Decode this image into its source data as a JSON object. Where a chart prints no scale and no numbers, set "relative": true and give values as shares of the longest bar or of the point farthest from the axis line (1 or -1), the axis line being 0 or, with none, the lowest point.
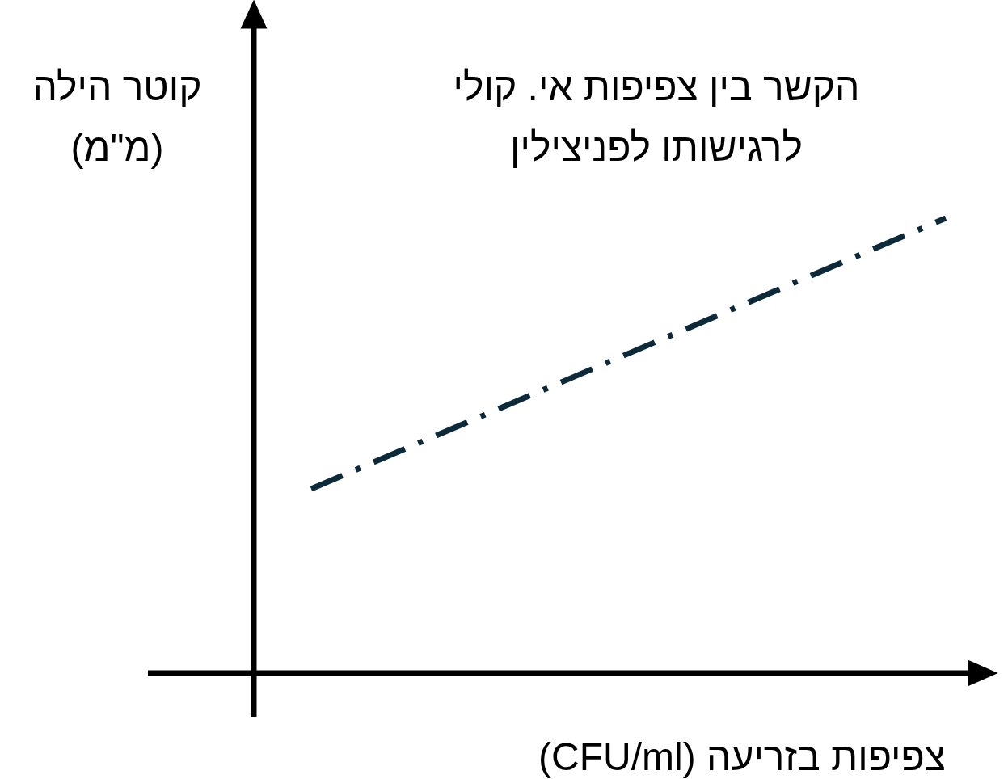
{
  "chart_data": {
    "type": "line",
    "title": "הקשר בין צפיפות אי. קולי\nלרגישותו לפניצילין",
    "xlabel": "צפיפות בזריעה (CFU/ml)",
    "ylabel": "קוטר הילה\n(מ\"מ)",
    "relative": true,
    "categories": [
      null,
      null
    ],
    "series": [
      {
        "color": "#0d2a3a",
        "values": [
          0.405,
          1
        ]
      }
    ],
    "line_style": "dashed"
  }
}
